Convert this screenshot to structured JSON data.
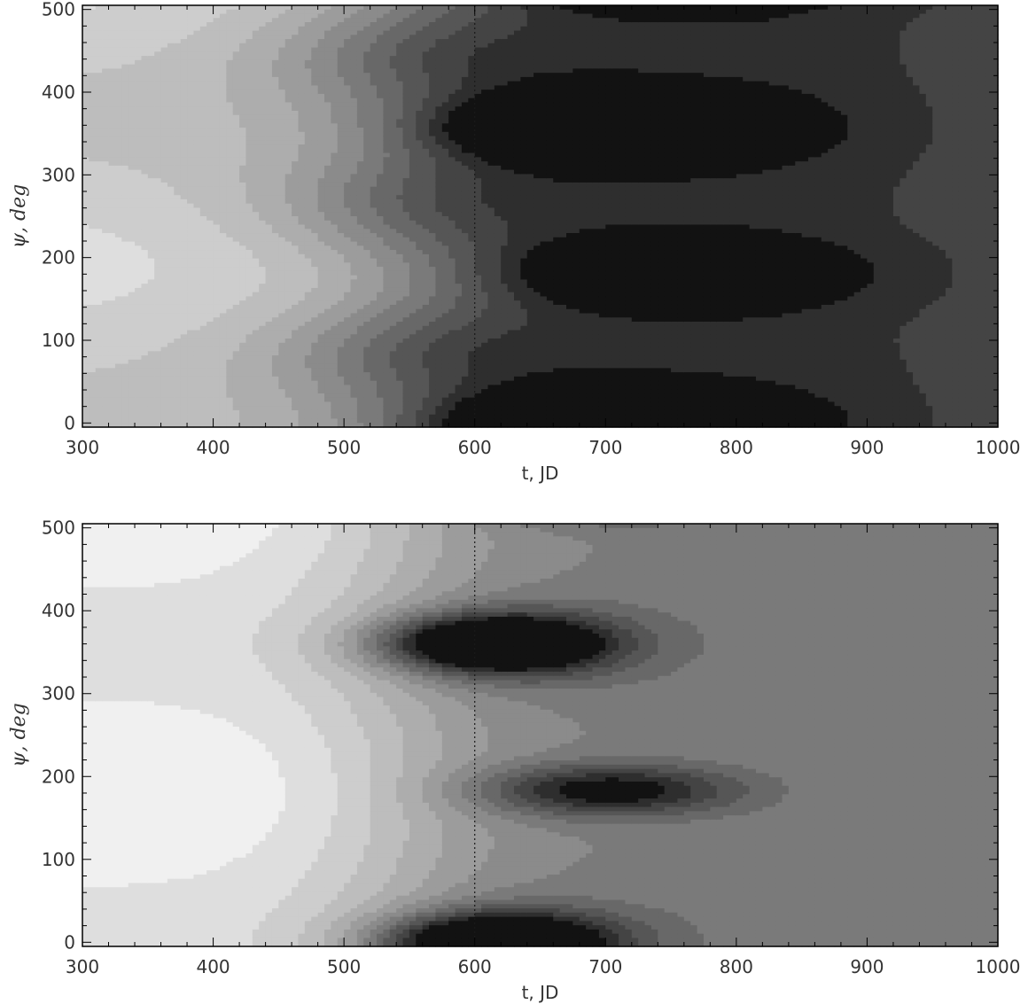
{
  "chart_data": [
    {
      "type": "heatmap",
      "panel": "top",
      "xlabel": "t, JD",
      "ylabel": "ψ, deg",
      "xlim": [
        300,
        1000
      ],
      "ylim": [
        -5,
        505
      ],
      "xticks": [
        300,
        400,
        500,
        600,
        700,
        800,
        900,
        1000
      ],
      "yticks": [
        0,
        100,
        200,
        300,
        400,
        500
      ],
      "xtick_labels": [
        "300",
        "400",
        "500",
        "600",
        "700",
        "800",
        "900",
        "1000"
      ],
      "ytick_labels": [
        "0",
        "100",
        "200",
        "300",
        "400",
        "500"
      ],
      "colormap": "grayscale",
      "filled_contours": true,
      "reference_line": {
        "x": 600,
        "style": "dotted"
      },
      "features": [
        {
          "kind": "dark-max",
          "t": 680,
          "psi": 355
        },
        {
          "kind": "dark-max",
          "t": 735,
          "psi": 180
        },
        {
          "kind": "dark-max",
          "t": 680,
          "psi": 0
        },
        {
          "kind": "light-max",
          "t": 320,
          "psi": 195
        }
      ]
    },
    {
      "type": "heatmap",
      "panel": "bottom",
      "xlabel": "t, JD",
      "ylabel": "ψ, deg",
      "xlim": [
        300,
        1000
      ],
      "ylim": [
        -5,
        505
      ],
      "xticks": [
        300,
        400,
        500,
        600,
        700,
        800,
        900,
        1000
      ],
      "yticks": [
        0,
        100,
        200,
        300,
        400,
        500
      ],
      "xtick_labels": [
        "300",
        "400",
        "500",
        "600",
        "700",
        "800",
        "900",
        "1000"
      ],
      "ytick_labels": [
        "0",
        "100",
        "200",
        "300",
        "400",
        "500"
      ],
      "colormap": "grayscale",
      "filled_contours": true,
      "reference_line": {
        "x": 600,
        "style": "dotted"
      },
      "features": [
        {
          "kind": "dark-max",
          "t": 615,
          "psi": 360
        },
        {
          "kind": "dark-max",
          "t": 700,
          "psi": 185
        },
        {
          "kind": "dark-max",
          "t": 600,
          "psi": 0
        },
        {
          "kind": "light-max",
          "t": 320,
          "psi": 180
        }
      ]
    }
  ]
}
